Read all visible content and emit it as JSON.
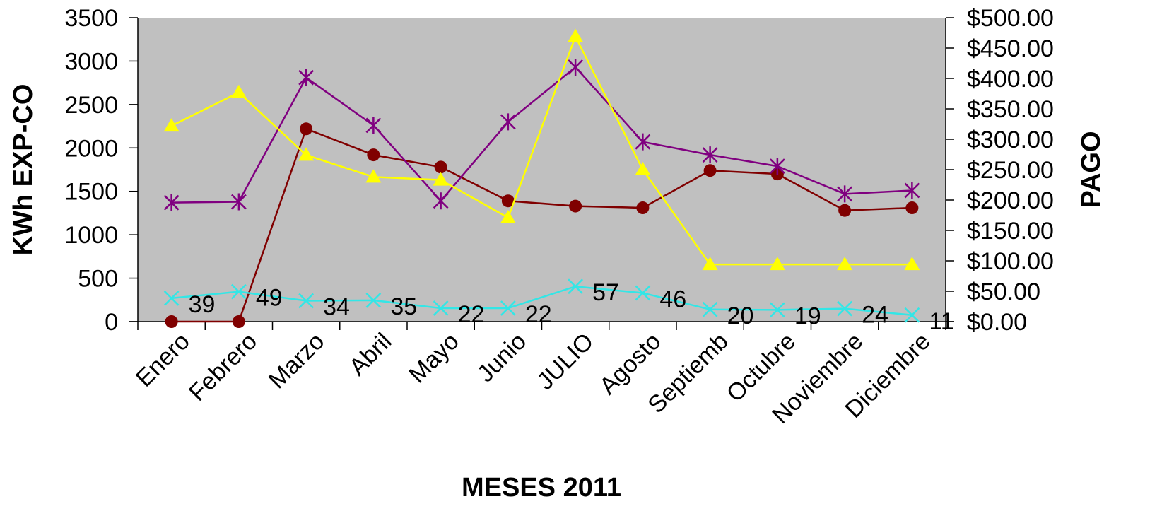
{
  "chart_data": {
    "type": "line",
    "xlabel": "MESES 2011",
    "ylabel": "KWh EXP-CO",
    "y2label": "PAGO",
    "categories": [
      "Enero",
      "Febrero",
      "Marzo",
      "Abril",
      "Mayo",
      "Junio",
      "JULIO",
      "Agosto",
      "Septiemb",
      "Octubre",
      "Noviembre",
      "Diciembre"
    ],
    "ylim": [
      0,
      3500
    ],
    "yticks": [
      "0",
      "500",
      "1000",
      "1500",
      "2000",
      "2500",
      "3000",
      "3500"
    ],
    "y2lim": [
      0,
      500
    ],
    "y2ticks": [
      "$0.00",
      "$50.00",
      "$100.00",
      "$150.00",
      "$200.00",
      "$250.00",
      "$300.00",
      "$350.00",
      "$400.00",
      "$450.00",
      "$500.00"
    ],
    "grid": false,
    "plot_background": "#c0c0c0",
    "series": [
      {
        "axis": "left",
        "color": "#800000",
        "marker": "circle",
        "values": [
          0,
          0,
          2220,
          1920,
          1780,
          1390,
          1330,
          1310,
          1740,
          1700,
          1280,
          1310
        ]
      },
      {
        "axis": "left",
        "color": "#800080",
        "marker": "star",
        "values": [
          1370,
          1380,
          2810,
          2260,
          1390,
          2300,
          2930,
          2070,
          1920,
          1790,
          1470,
          1510
        ]
      },
      {
        "axis": "right",
        "color": "#ffff00",
        "marker": "triangle",
        "values": [
          322,
          377,
          274,
          238,
          233,
          171,
          469,
          250,
          94,
          94,
          94,
          94
        ]
      },
      {
        "axis": "left",
        "color": "#33e6e6",
        "marker": "x",
        "values": [
          270,
          345,
          240,
          245,
          155,
          155,
          405,
          330,
          140,
          135,
          150,
          75
        ],
        "data_labels": [
          "39",
          "49",
          "34",
          "35",
          "22",
          "22",
          "57",
          "46",
          "20",
          "19",
          "24",
          "11"
        ]
      }
    ]
  }
}
